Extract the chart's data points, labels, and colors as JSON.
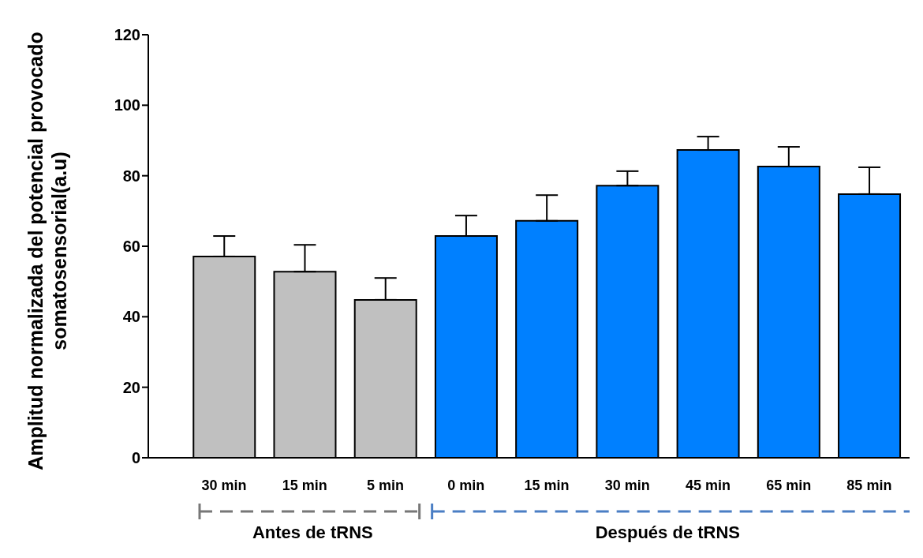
{
  "chart_data": {
    "type": "bar",
    "ylabel": "Amplitud normalizada del potencial provocado somatosensorial(a.u)",
    "categories": [
      "30 min",
      "15 min",
      "5 min",
      "0 min",
      "15 min",
      "30 min",
      "45 min",
      "65 min",
      "85 min"
    ],
    "values": [
      57.1,
      52.8,
      44.8,
      62.9,
      67.2,
      77.2,
      87.3,
      82.6,
      74.8
    ],
    "colors": [
      "#c0c0c0",
      "#c0c0c0",
      "#c0c0c0",
      "#0080ff",
      "#0080ff",
      "#0080ff",
      "#0080ff",
      "#0080ff",
      "#0080ff"
    ],
    "errors": [
      [
        57.1,
        62.9
      ],
      [
        52.8,
        60.4
      ],
      [
        44.8,
        51.0
      ],
      [
        62.9,
        68.7
      ],
      [
        67.2,
        74.5
      ],
      [
        77.2,
        81.3
      ],
      [
        87.3,
        91.1
      ],
      [
        82.6,
        88.2
      ],
      [
        74.8,
        82.4
      ]
    ],
    "ylim": [
      0,
      120
    ],
    "yticks": [
      0,
      20,
      40,
      60,
      80,
      100,
      120
    ],
    "grid": false,
    "legend": false,
    "annotations": [
      "Antes de tRNS",
      "Después de tRNS"
    ]
  }
}
